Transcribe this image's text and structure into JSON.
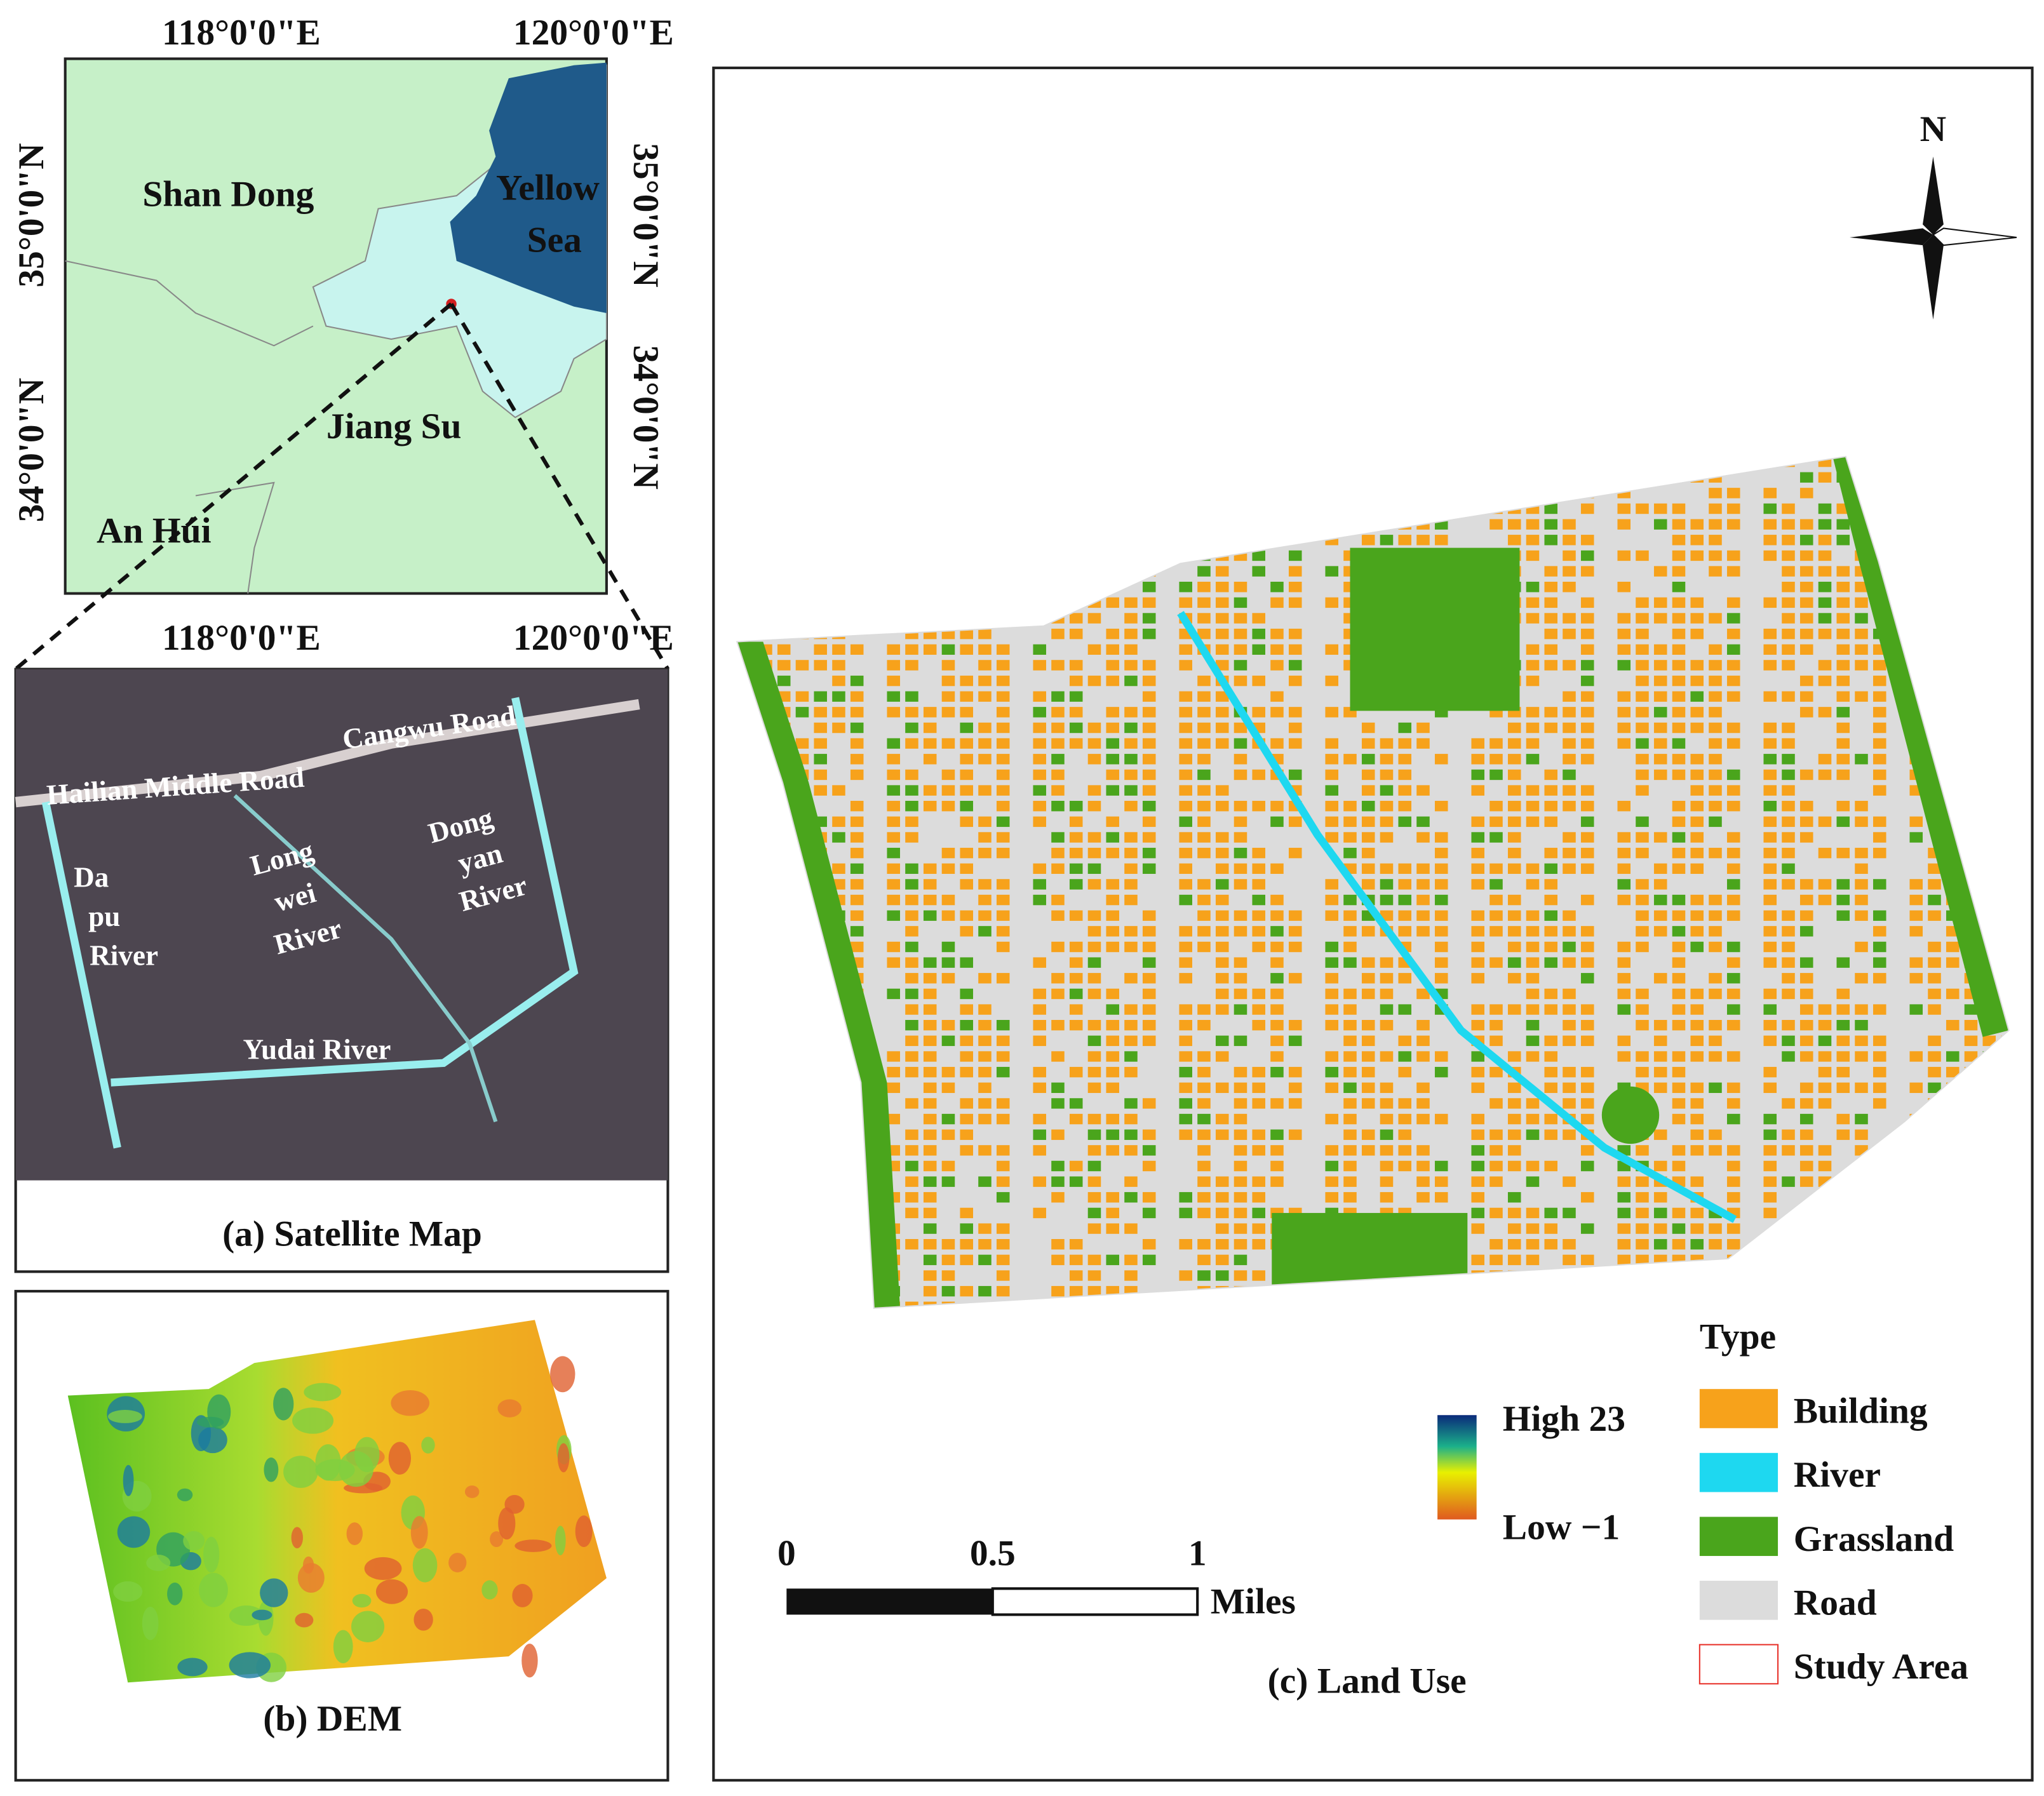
{
  "location_map": {
    "lon_labels_top": [
      "118°0'0\"E",
      "120°0'0\"E"
    ],
    "lon_labels_bottom": [
      "118°0'0\"E",
      "120°0'0\"E"
    ],
    "lat_labels_left": [
      "35°0'0\"N",
      "34°0'0\"N"
    ],
    "lat_labels_right": [
      "35°0'0\"N",
      "34°0'0\"N"
    ],
    "regions": {
      "shandong": "Shan Dong",
      "jiangsu": "Jiang Su",
      "anhui": "An Húi",
      "yellow_sea": [
        "Yellow",
        "Sea"
      ]
    }
  },
  "satellite_map": {
    "title": "(a) Satellite Map",
    "roads": [
      "Cangwu Road",
      "Hailian Middle Road"
    ],
    "rivers": {
      "dapu": [
        "Da",
        "pu",
        "River"
      ],
      "longwei": [
        "Long",
        "wei",
        "River"
      ],
      "dongyan": [
        "Dong",
        "yan",
        "River"
      ],
      "yudai": "Yudai River"
    }
  },
  "dem": {
    "title": "(b) DEM"
  },
  "land_use": {
    "title": "(c) Land Use",
    "north": "N",
    "elevation_legend": {
      "high": "High 23",
      "low": "Low −1"
    },
    "scale_bar": {
      "labels": [
        "0",
        "0.5",
        "1"
      ],
      "unit": "Miles"
    },
    "legend": {
      "title": "Type",
      "items": [
        {
          "name": "Building",
          "color": "#f7a21b"
        },
        {
          "name": "River",
          "color": "#1ed8f0"
        },
        {
          "name": "Grassland",
          "color": "#4aa51c"
        },
        {
          "name": "Road",
          "color": "#dcdcdc"
        },
        {
          "name": "Study Area",
          "color": "#e8322b"
        }
      ]
    }
  }
}
